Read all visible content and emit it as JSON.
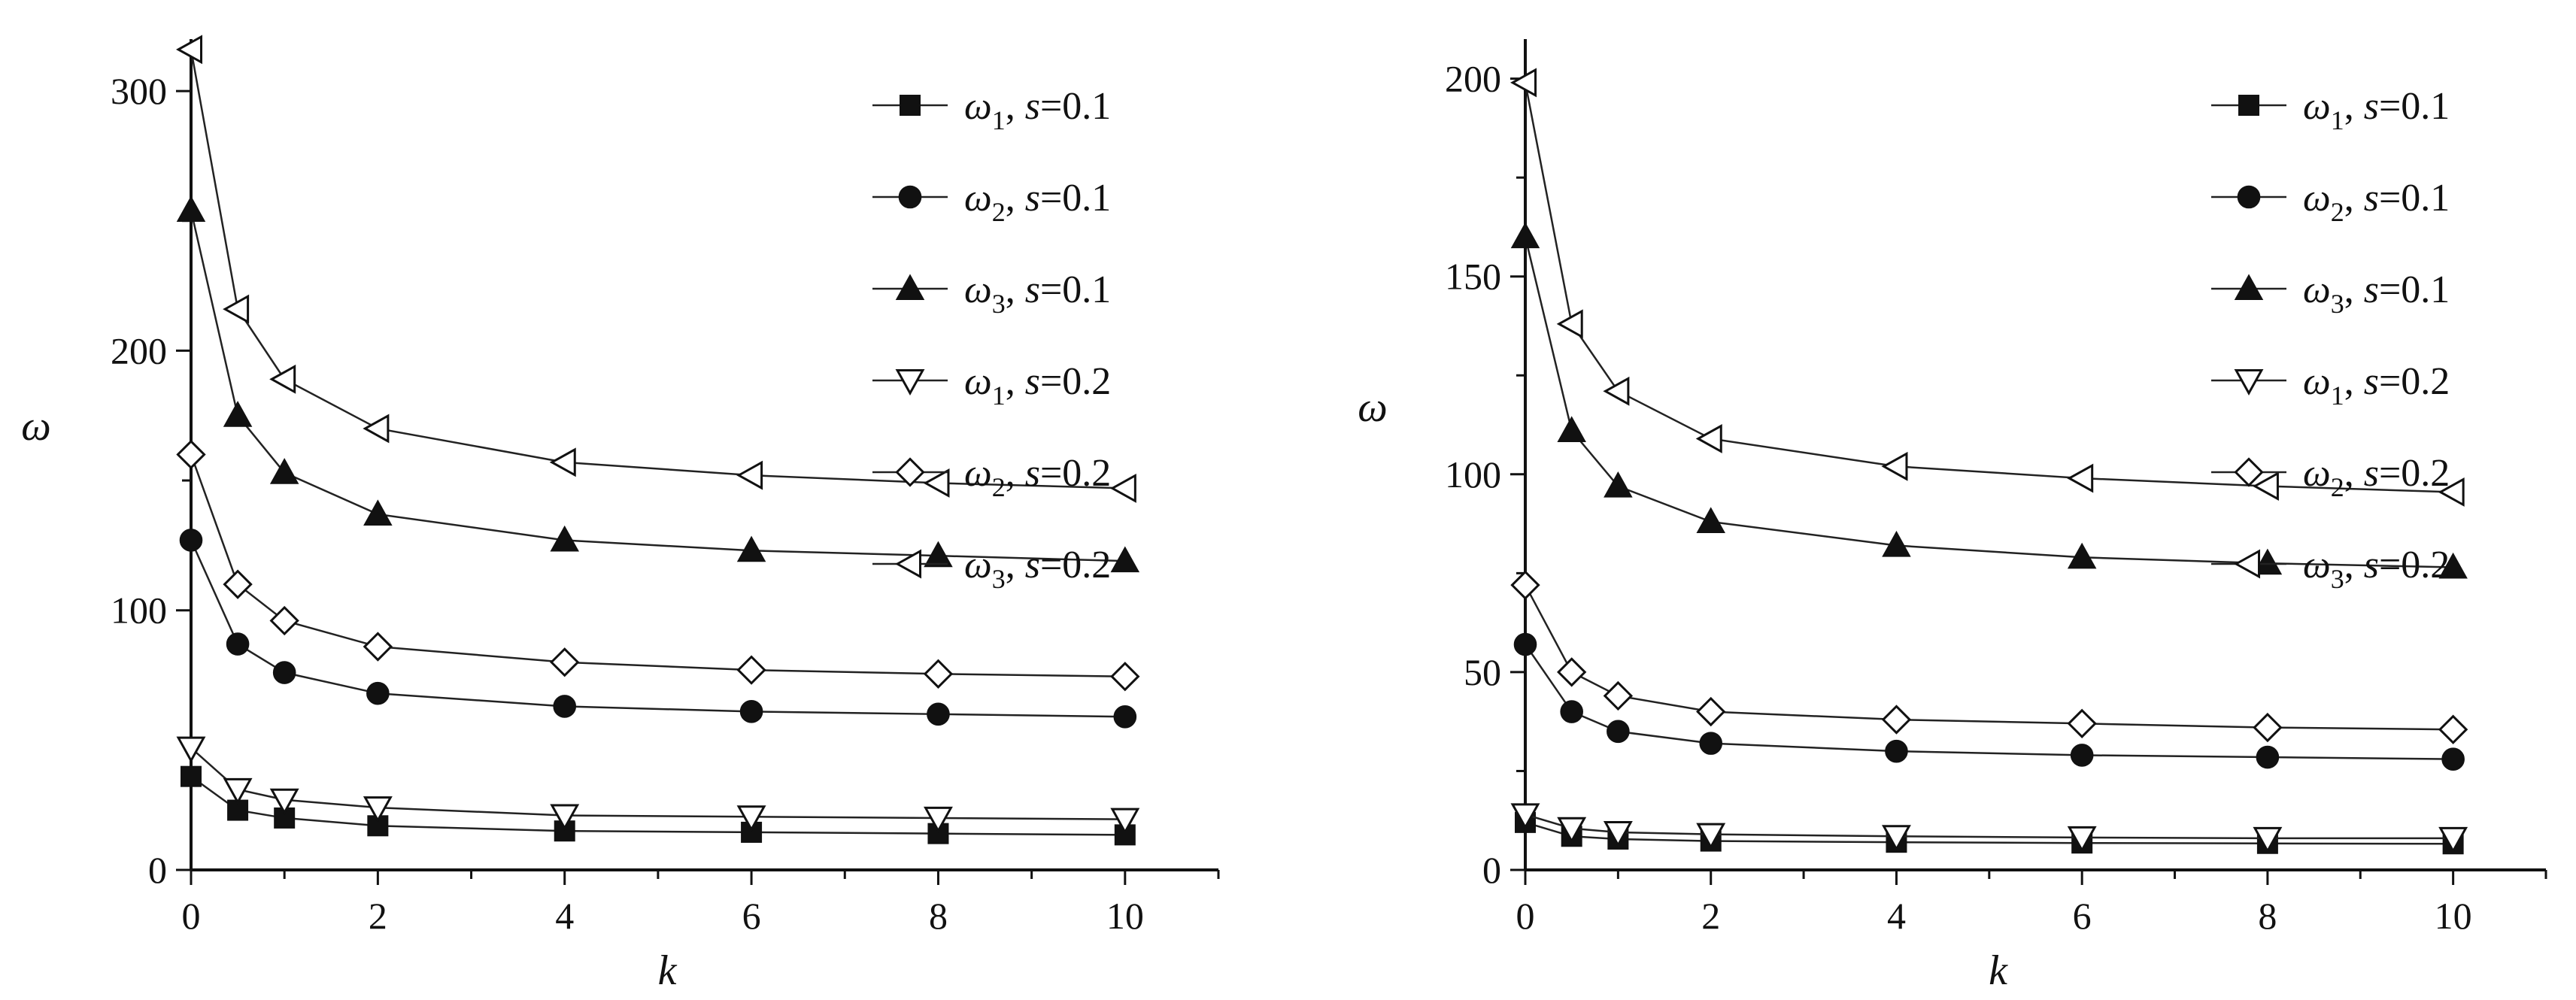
{
  "chart_data": [
    {
      "type": "line",
      "xlabel": "k",
      "ylabel": "ω",
      "xlim": [
        0,
        11
      ],
      "ylim": [
        0,
        320
      ],
      "xticks": [
        0,
        2,
        4,
        6,
        8,
        10
      ],
      "yticks": [
        0,
        100,
        200,
        300
      ],
      "x": [
        0,
        0.5,
        1,
        2,
        4,
        6,
        8,
        10
      ],
      "legend_position": "top-right",
      "grid": false,
      "series": [
        {
          "name": "ω1, s=0.1",
          "sym": "ω",
          "sub": "1",
          "rest": ", s=0.1",
          "marker": "square-filled",
          "values": [
            36,
            23,
            20,
            17,
            15,
            14.5,
            14,
            13.5
          ]
        },
        {
          "name": "ω2, s=0.1",
          "sym": "ω",
          "sub": "2",
          "rest": ", s=0.1",
          "marker": "circle-filled",
          "values": [
            127,
            87,
            76,
            68,
            63,
            61,
            60,
            59
          ]
        },
        {
          "name": "ω3, s=0.1",
          "sym": "ω",
          "sub": "3",
          "rest": ", s=0.1",
          "marker": "triangle-up-filled",
          "values": [
            254,
            175,
            153,
            137,
            127,
            123,
            121,
            119
          ]
        },
        {
          "name": "ω1, s=0.2",
          "sym": "ω",
          "sub": "1",
          "rest": ", s=0.2",
          "marker": "triangle-down-open",
          "values": [
            47,
            31,
            27,
            24,
            21,
            20.5,
            20,
            19.5
          ]
        },
        {
          "name": "ω2, s=0.2",
          "sym": "ω",
          "sub": "2",
          "rest": ", s=0.2",
          "marker": "diamond-open",
          "values": [
            160,
            110,
            96,
            86,
            80,
            77,
            75.5,
            74.5
          ]
        },
        {
          "name": "ω3, s=0.2",
          "sym": "ω",
          "sub": "3",
          "rest": ", s=0.2",
          "marker": "triangle-left-open",
          "values": [
            316,
            216,
            189,
            170,
            157,
            152,
            149,
            147
          ]
        }
      ]
    },
    {
      "type": "line",
      "xlabel": "k",
      "ylabel": "ω",
      "xlim": [
        0,
        11
      ],
      "ylim": [
        0,
        210
      ],
      "xticks": [
        0,
        2,
        4,
        6,
        8,
        10
      ],
      "yticks": [
        0,
        50,
        100,
        150,
        200
      ],
      "x": [
        0,
        0.5,
        1,
        2,
        4,
        6,
        8,
        10
      ],
      "legend_position": "top-right",
      "grid": false,
      "series": [
        {
          "name": "ω1, s=0.1",
          "sym": "ω",
          "sub": "1",
          "rest": ", s=0.1",
          "marker": "square-filled",
          "values": [
            12,
            8.5,
            7.8,
            7.3,
            7,
            6.8,
            6.7,
            6.6
          ]
        },
        {
          "name": "ω2, s=0.1",
          "sym": "ω",
          "sub": "2",
          "rest": ", s=0.1",
          "marker": "circle-filled",
          "values": [
            57,
            40,
            35,
            32,
            30,
            29,
            28.5,
            28
          ]
        },
        {
          "name": "ω3, s=0.1",
          "sym": "ω",
          "sub": "3",
          "rest": ", s=0.1",
          "marker": "triangle-up-filled",
          "values": [
            160,
            111,
            97,
            88,
            82,
            79,
            77.5,
            76.5
          ]
        },
        {
          "name": "ω1, s=0.2",
          "sym": "ω",
          "sub": "1",
          "rest": ", s=0.2",
          "marker": "triangle-down-open",
          "values": [
            14,
            10.5,
            9.5,
            9,
            8.5,
            8.2,
            8,
            8
          ]
        },
        {
          "name": "ω2, s=0.2",
          "sym": "ω",
          "sub": "2",
          "rest": ", s=0.2",
          "marker": "diamond-open",
          "values": [
            72,
            50,
            44,
            40,
            38,
            37,
            36,
            35.5
          ]
        },
        {
          "name": "ω3, s=0.2",
          "sym": "ω",
          "sub": "3",
          "rest": ", s=0.2",
          "marker": "triangle-left-open",
          "values": [
            199,
            138,
            121,
            109,
            102,
            99,
            97,
            95.5
          ]
        }
      ]
    }
  ]
}
